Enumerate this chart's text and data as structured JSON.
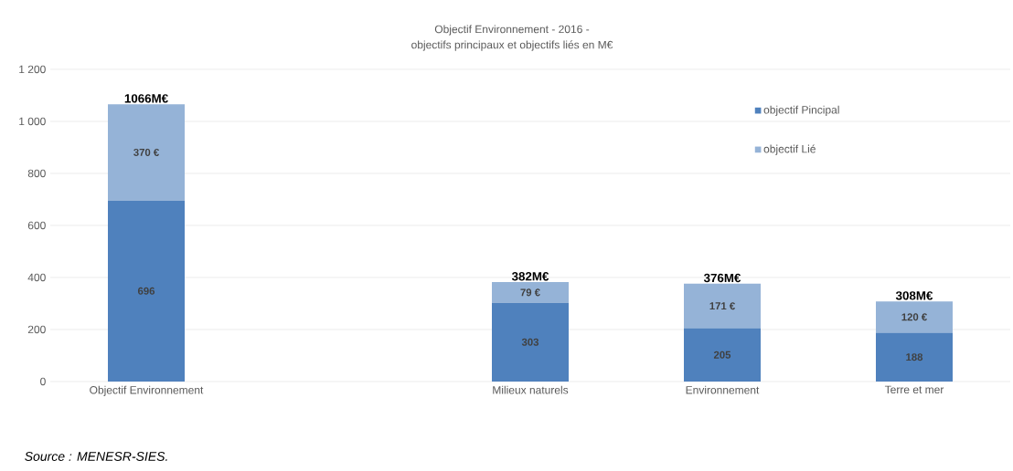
{
  "chart_data": {
    "type": "bar",
    "stacked": true,
    "title": "Objectif  Environnement - 2016 -",
    "subtitle": "objectifs principaux et objectifs liés en M€",
    "categories": [
      "Objectif Environnement",
      null,
      "Milieux naturels",
      "Environnement",
      "Terre et mer"
    ],
    "series": [
      {
        "name": "objectif Pincipal",
        "color": "#4f81bd",
        "values": [
          696,
          null,
          303,
          205,
          188
        ],
        "value_labels": [
          "696",
          null,
          "303",
          "205",
          "188"
        ]
      },
      {
        "name": "objectif  Lié",
        "color": "#95b3d7",
        "values": [
          370,
          null,
          79,
          171,
          120
        ],
        "value_labels": [
          "370 €",
          null,
          "79 €",
          "171 €",
          "120 €"
        ]
      }
    ],
    "totals": [
      "1066M€",
      null,
      "382M€",
      "376M€",
      "308M€"
    ],
    "ylim": [
      0,
      1200
    ],
    "yticks": [
      0,
      200,
      400,
      600,
      800,
      {
        "value": 1000,
        "label": "1 000"
      },
      {
        "value": 1200,
        "label": "1 200"
      }
    ],
    "grid": "y",
    "legend": "top right",
    "annotations": [
      "Source : MENESR-SIES."
    ]
  }
}
